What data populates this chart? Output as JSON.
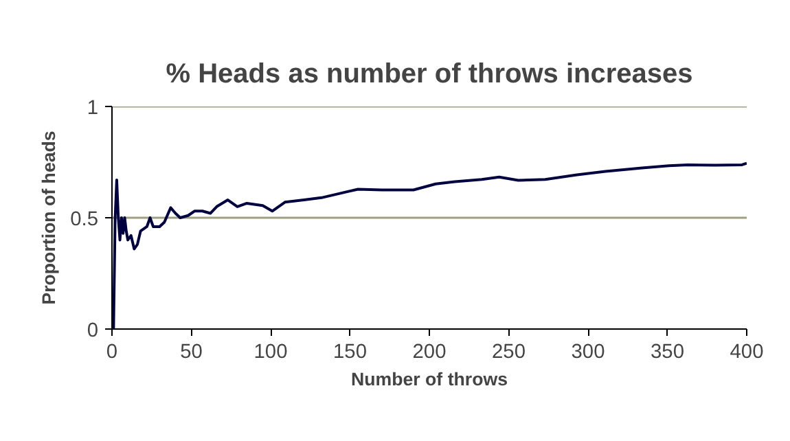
{
  "chart_data": {
    "type": "line",
    "title": "% Heads as number of throws increases",
    "xlabel": "Number of throws",
    "ylabel": "Proportion of heads",
    "x": [
      1,
      2,
      3,
      4,
      5,
      6,
      7,
      8,
      9,
      10,
      12,
      14,
      16,
      18,
      20,
      22,
      24,
      26,
      30,
      33,
      37,
      40,
      43,
      48,
      52,
      57,
      62,
      66,
      73,
      79,
      85,
      95,
      101,
      109,
      121,
      132,
      144,
      155,
      170,
      190,
      204,
      216,
      233,
      244,
      256,
      273,
      293,
      311,
      334,
      351,
      363,
      380,
      397,
      400
    ],
    "series": [
      {
        "color": "#000040",
        "values": [
          0,
          0.5,
          0.67,
          0.5,
          0.4,
          0.5,
          0.43,
          0.5,
          0.44,
          0.4,
          0.42,
          0.36,
          0.38,
          0.44,
          0.45,
          0.46,
          0.5,
          0.46,
          0.46,
          0.48,
          0.545,
          0.52,
          0.5,
          0.51,
          0.53,
          0.53,
          0.52,
          0.55,
          0.58,
          0.55,
          0.565,
          0.555,
          0.53,
          0.57,
          0.58,
          0.59,
          0.61,
          0.628,
          0.625,
          0.625,
          0.652,
          0.662,
          0.672,
          0.683,
          0.668,
          0.672,
          0.693,
          0.708,
          0.724,
          0.734,
          0.738,
          0.736,
          0.738,
          0.745
        ]
      }
    ],
    "xlim": [
      0,
      400
    ],
    "xticks": [
      0,
      50,
      100,
      150,
      200,
      250,
      300,
      350,
      400
    ],
    "ylim": [
      0,
      1
    ],
    "yticks": [
      0,
      0.5,
      1
    ],
    "grid": "y"
  }
}
